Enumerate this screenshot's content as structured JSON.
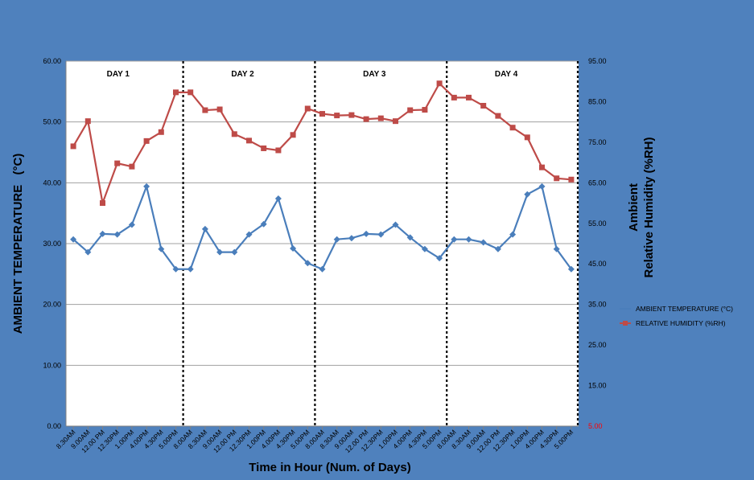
{
  "chart_data": {
    "type": "line",
    "xlabel": "Time in Hour (Num. of Days)",
    "ylabel_left": "AMBIENT TEMPERATURE",
    "ylabel_left_unit": "(°C)",
    "ylabel_right_line1": "Ambient",
    "ylabel_right_line2": "Relative Humidity (%RH)",
    "ylim_left": [
      0,
      60
    ],
    "ylim_right": [
      5,
      95
    ],
    "yticks_left": [
      "0.00",
      "10.00",
      "20.00",
      "30.00",
      "40.00",
      "50.00",
      "60.00"
    ],
    "yticks_right": [
      "5.00",
      "15.00",
      "25.00",
      "35.00",
      "45.00",
      "55.00",
      "65.00",
      "75.00",
      "85.00",
      "95.00"
    ],
    "categories": [
      "8.30AM",
      "9.00AM",
      "12.00 PM",
      "12.30PM",
      "1.00PM",
      "4.00PM",
      "4.30PM",
      "5.00PM",
      "8.00AM",
      "8.30AM",
      "9.00AM",
      "12.00 PM",
      "12.30PM",
      "1.00PM",
      "4.00PM",
      "4.30PM",
      "5.00PM",
      "8.00AM",
      "8.30AM",
      "9.00AM",
      "12.00 PM",
      "12.30PM",
      "1.00PM",
      "4.00PM",
      "4.30PM",
      "5.00PM",
      "8.00AM",
      "8.30AM",
      "9.00AM",
      "12.00 PM",
      "12.30PM",
      "1.00PM",
      "4.00PM",
      "4.30PM",
      "5.00PM"
    ],
    "day_labels": [
      "DAY 1",
      "DAY 2",
      "DAY 3",
      "DAY 4"
    ],
    "day_divider_after_index": [
      7.5,
      16.5,
      25.5,
      34.5
    ],
    "series": [
      {
        "name": "AMBIENT TEMPERATURE   (°C)",
        "axis": "left",
        "color": "#4a7ebb",
        "marker": "diamond",
        "values": [
          30.7,
          28.6,
          31.6,
          31.5,
          33.1,
          39.4,
          29.1,
          25.8,
          25.8,
          32.4,
          28.6,
          28.6,
          31.5,
          33.2,
          37.4,
          29.2,
          26.8,
          25.8,
          30.7,
          30.9,
          31.6,
          31.5,
          33.1,
          31.0,
          29.1,
          27.6,
          30.7,
          30.7,
          30.2,
          29.1,
          31.5,
          38.1,
          39.4,
          29.1,
          25.8
        ]
      },
      {
        "name": "RELATIVE HUMIDITY (%RH)",
        "axis": "right",
        "color": "#be4b48",
        "marker": "square",
        "values": [
          74.0,
          80.2,
          60.0,
          69.8,
          69.0,
          75.3,
          77.5,
          87.3,
          87.3,
          82.9,
          83.1,
          77.0,
          75.4,
          73.5,
          73.0,
          76.8,
          83.3,
          82.0,
          81.6,
          81.7,
          80.7,
          80.9,
          80.2,
          82.9,
          83.0,
          89.5,
          86.0,
          86.0,
          84.0,
          81.5,
          78.6,
          76.2,
          68.8,
          66.1,
          65.8
        ]
      }
    ],
    "legend_position": "right",
    "grid": true
  },
  "colors": {
    "background": "#4f81bd",
    "plot_area": "#ffffff",
    "gridline": "#a0a0a0",
    "divider": "#000000",
    "axis_text": "#000000",
    "right_axis_min_text": "#ff0000"
  }
}
